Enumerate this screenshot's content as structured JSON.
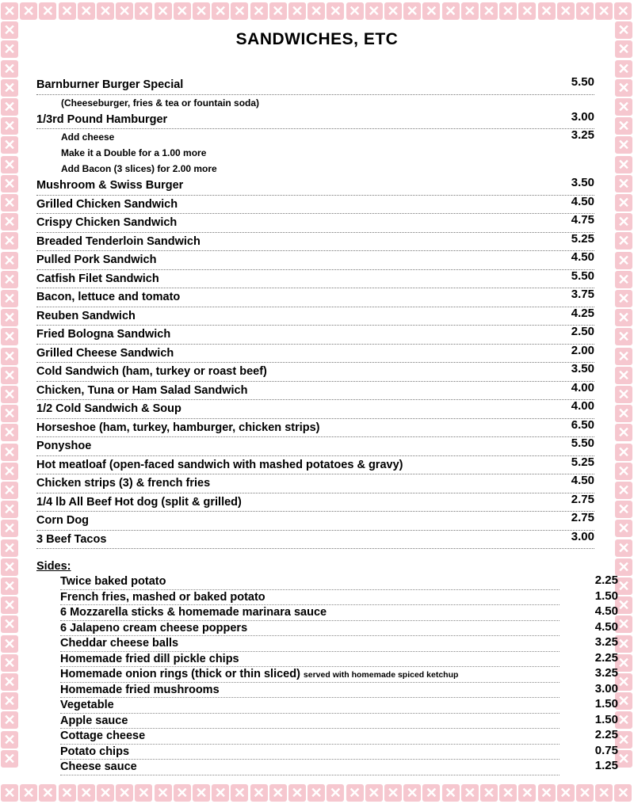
{
  "border": {
    "color": "#f6c7cf",
    "icon": "fork-and-knife-icon"
  },
  "title": "SANDWICHES, ETC",
  "items": [
    {
      "name": "Barnburner Burger Special",
      "price": "5.50"
    },
    {
      "sub": "(Cheeseburger, fries & tea or fountain soda)"
    },
    {
      "name": "1/3rd Pound Hamburger",
      "price": "3.00"
    },
    {
      "sub": "Add cheese",
      "price": "3.25"
    },
    {
      "sub": "Make it a Double for a 1.00 more"
    },
    {
      "sub": "Add Bacon (3 slices) for 2.00 more"
    },
    {
      "name": "Mushroom & Swiss Burger",
      "price": "3.50"
    },
    {
      "name": "Grilled Chicken Sandwich",
      "price": "4.50"
    },
    {
      "name": "Crispy Chicken Sandwich",
      "price": "4.75"
    },
    {
      "name": "Breaded Tenderloin Sandwich",
      "price": "5.25"
    },
    {
      "name": "Pulled Pork Sandwich",
      "price": "4.50"
    },
    {
      "name": "Catfish Filet Sandwich",
      "price": "5.50"
    },
    {
      "name": "Bacon, lettuce and tomato",
      "price": "3.75"
    },
    {
      "name": "Reuben Sandwich",
      "price": "4.25"
    },
    {
      "name": "Fried Bologna Sandwich",
      "price": "2.50"
    },
    {
      "name": "Grilled Cheese Sandwich",
      "price": "2.00"
    },
    {
      "name": "Cold Sandwich (ham, turkey or roast beef)",
      "price": "3.50"
    },
    {
      "name": "Chicken, Tuna or Ham Salad Sandwich",
      "price": "4.00"
    },
    {
      "name": "1/2 Cold Sandwich & Soup",
      "price": "4.00"
    },
    {
      "name": "Horseshoe (ham, turkey, hamburger, chicken strips)",
      "price": "6.50"
    },
    {
      "name": "Ponyshoe",
      "price": "5.50"
    },
    {
      "name": "Hot meatloaf (open-faced sandwich with mashed potatoes & gravy)",
      "price": "5.25"
    },
    {
      "name": "Chicken strips (3) & french fries",
      "price": "4.50"
    },
    {
      "name": "1/4 lb All Beef Hot dog (split & grilled)",
      "price": "2.75"
    },
    {
      "name": "Corn Dog",
      "price": "2.75"
    },
    {
      "name": "3 Beef Tacos",
      "price": "3.00"
    }
  ],
  "sides_heading": "Sides:",
  "sides": [
    {
      "name": "Twice baked potato",
      "price": "2.25"
    },
    {
      "name": "French fries, mashed or baked potato",
      "price": "1.50"
    },
    {
      "name": "6 Mozzarella sticks & homemade marinara sauce",
      "price": "4.50"
    },
    {
      "name": "6 Jalapeno cream cheese poppers",
      "price": "4.50"
    },
    {
      "name": "Cheddar cheese balls",
      "price": "3.25"
    },
    {
      "name": "Homemade fried dill pickle chips",
      "price": "2.25"
    },
    {
      "name": "Homemade onion rings (thick or thin sliced)",
      "note": "served with homemade spiced ketchup",
      "price": "3.25"
    },
    {
      "name": "Homemade fried mushrooms",
      "price": "3.00"
    },
    {
      "name": "Vegetable",
      "price": "1.50"
    },
    {
      "name": "Apple sauce",
      "price": "1.50"
    },
    {
      "name": "Cottage cheese",
      "price": "2.25"
    },
    {
      "name": "Potato chips",
      "price": "0.75"
    },
    {
      "name": "Cheese sauce",
      "price": "1.25"
    }
  ]
}
